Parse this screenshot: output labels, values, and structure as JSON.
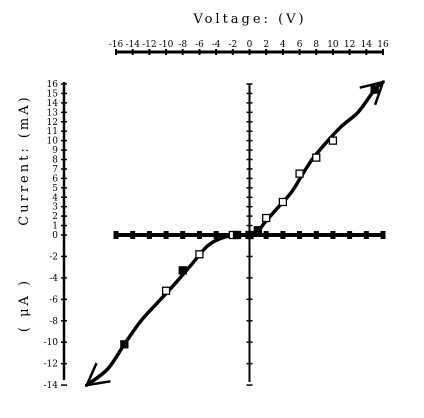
{
  "chart_data": {
    "type": "scatter",
    "title": "",
    "xlabel": "Voltage:   (V)",
    "ylabel_upper": "Current:   (mA)",
    "ylabel_lower": "( μA )",
    "xlim": [
      -16,
      16
    ],
    "xticks": [
      "-16",
      "-14",
      "-12",
      "-10",
      "-8",
      "-6",
      "-4",
      "-2",
      "0",
      "2",
      "4",
      "6",
      "8",
      "10",
      "12",
      "14",
      "16"
    ],
    "yticks_upper": [
      "16",
      "15",
      "14",
      "13",
      "12",
      "11",
      "10",
      "9",
      "8",
      "7",
      "6",
      "5",
      "4",
      "3",
      "2",
      "1",
      "0"
    ],
    "yticks_lower": [
      "-2",
      "-4",
      "-6",
      "-8",
      "-10",
      "-12",
      "-14"
    ],
    "series": [
      {
        "marker": "open-square",
        "points": [
          {
            "x": -10,
            "y": -5.2
          },
          {
            "x": -6,
            "y": -1.8
          },
          {
            "x": -2,
            "y": 0
          },
          {
            "x": 2,
            "y": 1.8
          },
          {
            "x": 4,
            "y": 3.5
          },
          {
            "x": 6,
            "y": 6.5
          },
          {
            "x": 8,
            "y": 8.2
          },
          {
            "x": 10,
            "y": 10
          }
        ]
      },
      {
        "marker": "filled-square",
        "points": [
          {
            "x": -15,
            "y": -10.2
          },
          {
            "x": -8,
            "y": -3.3
          },
          {
            "x": -1.5,
            "y": 0
          },
          {
            "x": 0,
            "y": 0
          },
          {
            "x": 1,
            "y": 0.5
          },
          {
            "x": 15,
            "y": 15.4
          }
        ]
      }
    ],
    "curve": [
      {
        "x": -19.5,
        "y": -14
      },
      {
        "x": -17,
        "y": -12.5
      },
      {
        "x": -15,
        "y": -10.2
      },
      {
        "x": -13,
        "y": -8
      },
      {
        "x": -11,
        "y": -6.3
      },
      {
        "x": -9,
        "y": -4.6
      },
      {
        "x": -7,
        "y": -2.8
      },
      {
        "x": -5,
        "y": -1
      },
      {
        "x": -3,
        "y": -0.2
      },
      {
        "x": -1,
        "y": 0
      },
      {
        "x": 0,
        "y": 0
      },
      {
        "x": 1,
        "y": 0.4
      },
      {
        "x": 2,
        "y": 1.5
      },
      {
        "x": 3.5,
        "y": 3
      },
      {
        "x": 5,
        "y": 4.5
      },
      {
        "x": 6.2,
        "y": 6.2
      },
      {
        "x": 7.5,
        "y": 8
      },
      {
        "x": 9,
        "y": 9.6
      },
      {
        "x": 11,
        "y": 11.5
      },
      {
        "x": 13,
        "y": 13
      },
      {
        "x": 15,
        "y": 15.4
      },
      {
        "x": 16,
        "y": 16.2
      }
    ],
    "grid": false,
    "legend": "none"
  }
}
